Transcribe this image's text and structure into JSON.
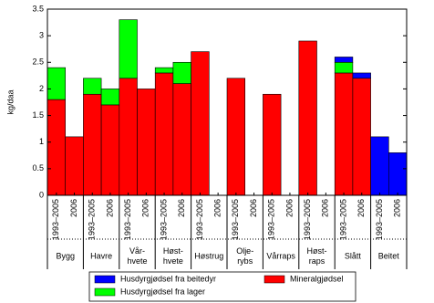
{
  "chart_data": {
    "type": "stacked-bar",
    "y_label": "kg/daa",
    "categories": [
      "1993–2005",
      "2006",
      "1993–2005",
      "2006",
      "1993–2005",
      "2006",
      "1993–2005",
      "2006",
      "1993–2005",
      "2006",
      "1993–2005",
      "2006",
      "1993–2005",
      "2006",
      "1993–2005",
      "2006",
      "1993–2005",
      "2006",
      "1993–2005",
      "2006"
    ],
    "groups": [
      [
        "Bygg"
      ],
      [
        "Havre"
      ],
      [
        "Vår-",
        "hvete"
      ],
      [
        "Høst-",
        "hvete"
      ],
      [
        "Høstrug"
      ],
      [
        "Olje-",
        "rybs"
      ],
      [
        "Vårraps"
      ],
      [
        "Høst-",
        "raps"
      ],
      [
        "Slått"
      ],
      [
        "Beitet"
      ]
    ],
    "series": [
      {
        "name": "Mineralgjødsel",
        "color": "#ff0000",
        "values": [
          1.8,
          1.1,
          1.9,
          1.7,
          2.2,
          2.0,
          2.3,
          2.1,
          2.7,
          null,
          2.2,
          null,
          1.9,
          null,
          2.9,
          null,
          2.3,
          2.2,
          null,
          null
        ]
      },
      {
        "name": "Husdyrgjødsel fra lager",
        "color": "#00ff00",
        "values": [
          0.6,
          null,
          0.3,
          0.3,
          1.1,
          null,
          0.1,
          0.4,
          null,
          null,
          null,
          null,
          null,
          null,
          null,
          null,
          0.2,
          null,
          null,
          null
        ]
      },
      {
        "name": "Husdyrgjødsel fra beitedyr",
        "color": "#0000ff",
        "values": [
          null,
          null,
          null,
          null,
          null,
          null,
          null,
          null,
          null,
          null,
          null,
          null,
          null,
          null,
          null,
          null,
          0.1,
          0.1,
          1.1,
          0.8
        ]
      }
    ],
    "ylim": [
      0,
      3.5
    ],
    "yticks": [
      0,
      0.5,
      1,
      1.5,
      2,
      2.5,
      3,
      3.5
    ]
  }
}
